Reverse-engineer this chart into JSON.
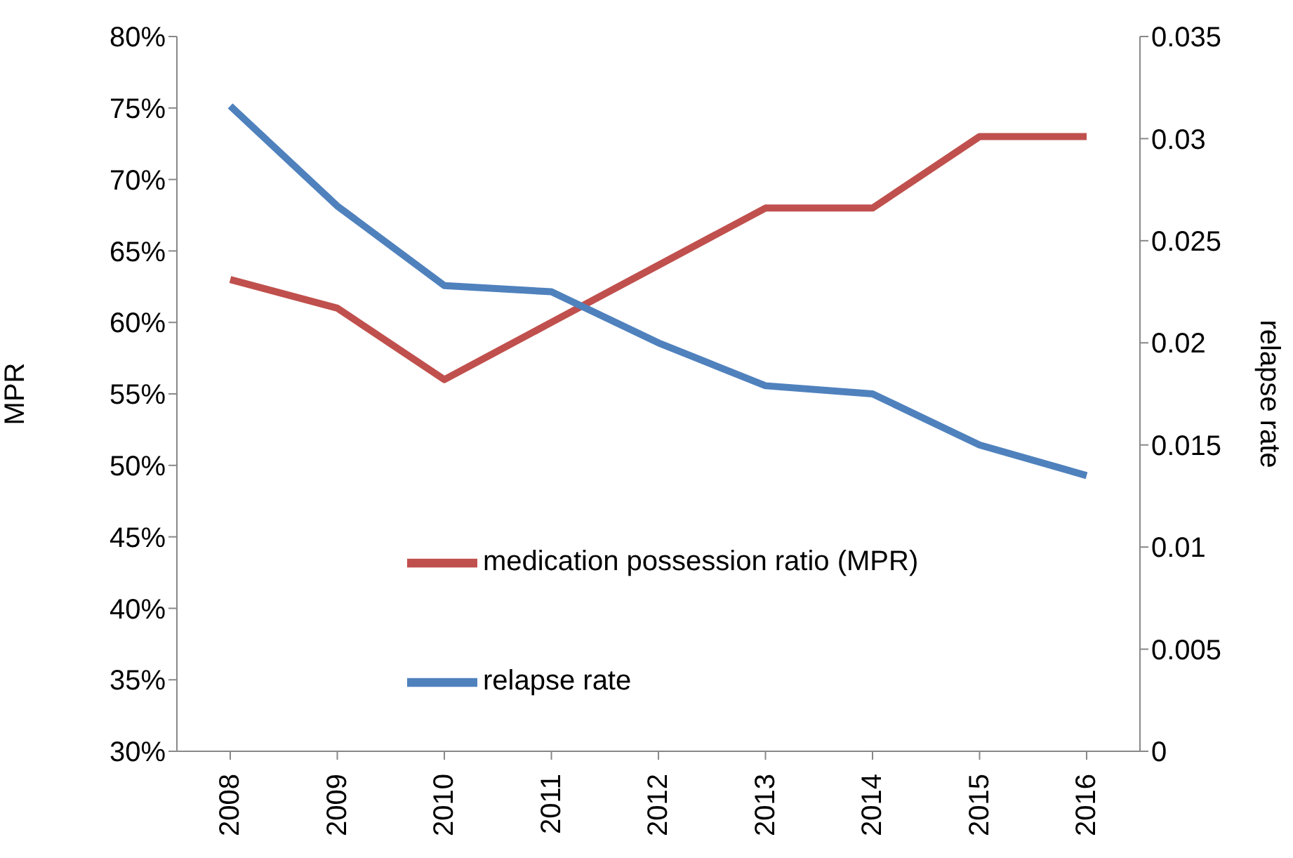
{
  "chart_data": {
    "type": "line",
    "ylabel": "MPR",
    "y2label": "relapse rate",
    "categories": [
      "2008",
      "2009",
      "2010",
      "2011",
      "2012",
      "2013",
      "2014",
      "2015",
      "2016"
    ],
    "series": [
      {
        "name": "medication possession ratio (MPR)",
        "color": "#c0504d",
        "values": [
          63,
          61,
          56,
          60,
          64,
          68,
          68,
          73,
          73
        ]
      },
      {
        "name": "relapse rate",
        "color": "#4f81bd",
        "axis": "y2",
        "values": [
          0.0316,
          0.0267,
          0.0228,
          0.0225,
          0.02,
          0.0179,
          0.0175,
          0.015,
          0.0135
        ]
      }
    ],
    "ylim": [
      30,
      80
    ],
    "yticks": [
      {
        "value": 30,
        "label": "30%"
      },
      {
        "value": 35,
        "label": "35%"
      },
      {
        "value": 40,
        "label": "40%"
      },
      {
        "value": 45,
        "label": "45%"
      },
      {
        "value": 50,
        "label": "50%"
      },
      {
        "value": 55,
        "label": "55%"
      },
      {
        "value": 60,
        "label": "60%"
      },
      {
        "value": 65,
        "label": "65%"
      },
      {
        "value": 70,
        "label": "70%"
      },
      {
        "value": 75,
        "label": "75%"
      },
      {
        "value": 80,
        "label": "80%"
      }
    ],
    "y2lim": [
      0,
      0.035
    ],
    "y2ticks": [
      0,
      0.005,
      0.01,
      0.015,
      0.02,
      0.025,
      0.03,
      0.035
    ],
    "legend": "right",
    "grid": false,
    "marker": "none",
    "line_style": "solid"
  }
}
